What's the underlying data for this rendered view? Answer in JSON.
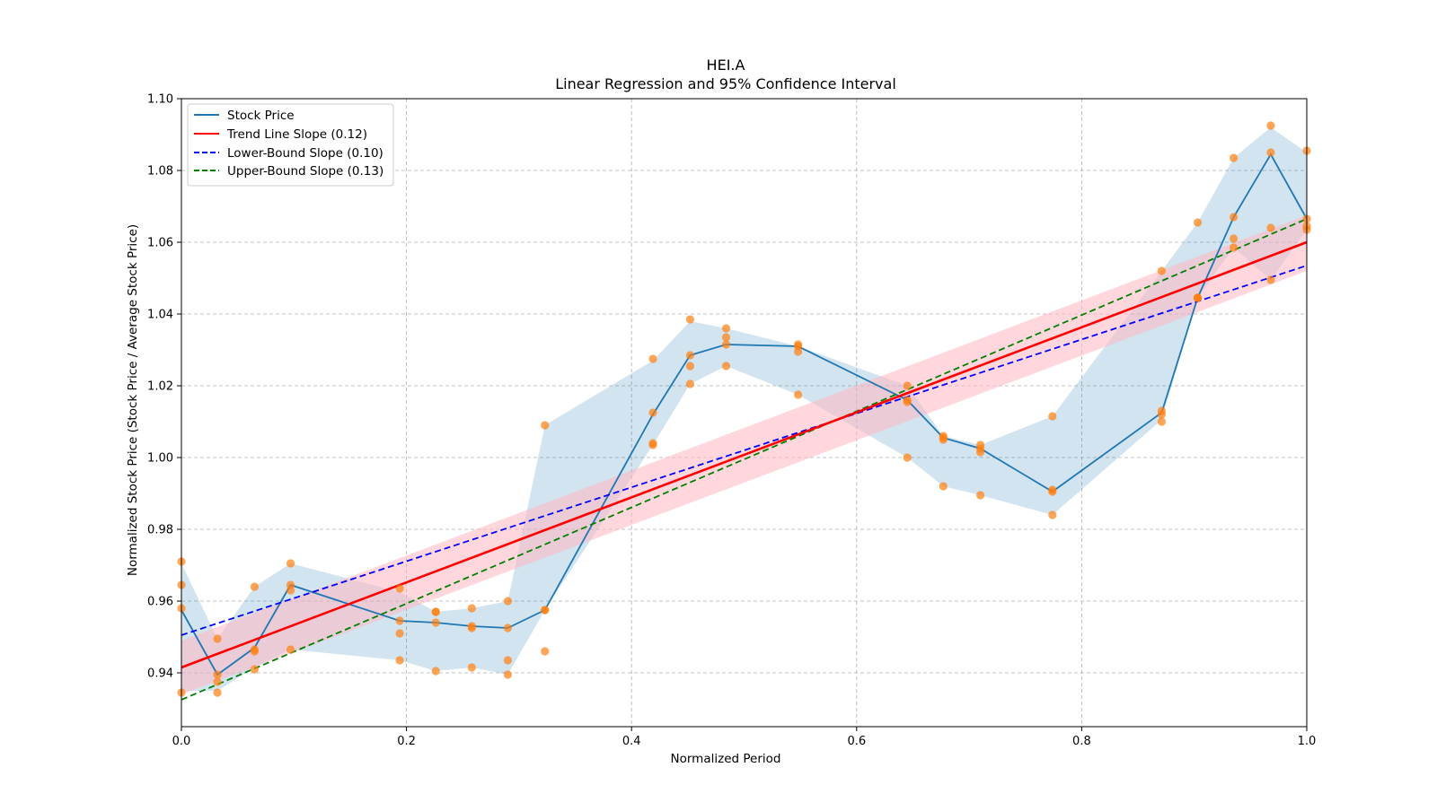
{
  "colors": {
    "price_line": "#1f77b4",
    "price_band": "#1f77b4",
    "scatter": "#ff7f0e",
    "trend": "#ff0000",
    "trend_band": "#ffb6c1",
    "lower": "#0000ff",
    "upper": "#008000",
    "grid": "#b0b0b0"
  },
  "chart_data": {
    "type": "line",
    "title": "HEI.A",
    "subtitle": "Linear Regression and 95% Confidence Interval",
    "xlabel": "Normalized Period",
    "ylabel": "Normalized Stock Price (Stock Price / Average Stock Price)",
    "xlim": [
      0,
      1
    ],
    "ylim": [
      0.925,
      1.1
    ],
    "x_ticks": [
      "0.0",
      "0.2",
      "0.4",
      "0.6",
      "0.8",
      "1.0"
    ],
    "x_tick_values": [
      0,
      0.2,
      0.4,
      0.6,
      0.8,
      1.0
    ],
    "y_ticks": [
      "0.94",
      "0.96",
      "0.98",
      "1.00",
      "1.02",
      "1.04",
      "1.06",
      "1.08",
      "1.10"
    ],
    "y_tick_values": [
      0.94,
      0.96,
      0.98,
      1.0,
      1.02,
      1.04,
      1.06,
      1.08,
      1.1
    ],
    "grid": true,
    "legend_position": "top-left",
    "legend": [
      {
        "label": "Stock Price",
        "style": "solid",
        "color": "#1f77b4"
      },
      {
        "label": "Trend Line Slope (0.12)",
        "style": "solid",
        "color": "#ff0000"
      },
      {
        "label": "Lower-Bound Slope (0.10)",
        "style": "dashed",
        "color": "#0000ff"
      },
      {
        "label": "Upper-Bound Slope (0.13)",
        "style": "dashed",
        "color": "#008000"
      }
    ],
    "stock_price": {
      "x": [
        0.0,
        0.032,
        0.065,
        0.097,
        0.194,
        0.226,
        0.258,
        0.29,
        0.323,
        0.419,
        0.452,
        0.484,
        0.548,
        0.645,
        0.677,
        0.71,
        0.774,
        0.871,
        0.903,
        0.935,
        0.968,
        1.0
      ],
      "y": [
        0.9575,
        0.9395,
        0.947,
        0.9645,
        0.9545,
        0.954,
        0.953,
        0.9525,
        0.9575,
        1.012,
        1.0285,
        1.0315,
        1.031,
        1.016,
        1.0055,
        1.0025,
        0.9905,
        1.0125,
        1.0445,
        1.067,
        1.0845,
        1.0665
      ]
    },
    "price_band": {
      "x": [
        0.0,
        0.032,
        0.065,
        0.097,
        0.194,
        0.226,
        0.258,
        0.29,
        0.323,
        0.419,
        0.452,
        0.484,
        0.548,
        0.645,
        0.677,
        0.71,
        0.774,
        0.871,
        0.903,
        0.935,
        0.968,
        1.0
      ],
      "upper": [
        0.9705,
        0.9495,
        0.964,
        0.9705,
        0.9625,
        0.957,
        0.958,
        0.96,
        1.009,
        1.027,
        1.038,
        1.036,
        1.031,
        1.02,
        1.006,
        1.0035,
        1.0115,
        1.052,
        1.0655,
        1.0835,
        1.092,
        1.085
      ],
      "lower": [
        0.935,
        0.935,
        0.9415,
        0.9465,
        0.9435,
        0.9405,
        0.9415,
        0.9395,
        0.9575,
        1.0035,
        1.0205,
        1.0255,
        1.0175,
        1.0,
        0.992,
        0.9895,
        0.984,
        1.0105,
        1.0445,
        1.0585,
        1.0495,
        1.0635
      ]
    },
    "scatter_points": {
      "x": [
        0.0,
        0.0,
        0.0,
        0.0,
        0.032,
        0.032,
        0.032,
        0.032,
        0.065,
        0.065,
        0.065,
        0.065,
        0.097,
        0.097,
        0.097,
        0.097,
        0.194,
        0.194,
        0.194,
        0.194,
        0.226,
        0.226,
        0.226,
        0.226,
        0.258,
        0.258,
        0.258,
        0.258,
        0.29,
        0.29,
        0.29,
        0.29,
        0.323,
        0.323,
        0.323,
        0.323,
        0.419,
        0.419,
        0.419,
        0.419,
        0.452,
        0.452,
        0.452,
        0.452,
        0.484,
        0.484,
        0.484,
        0.484,
        0.548,
        0.548,
        0.548,
        0.548,
        0.645,
        0.645,
        0.645,
        0.645,
        0.677,
        0.677,
        0.677,
        0.677,
        0.71,
        0.71,
        0.71,
        0.71,
        0.774,
        0.774,
        0.774,
        0.774,
        0.871,
        0.871,
        0.871,
        0.871,
        0.903,
        0.903,
        0.903,
        0.903,
        0.935,
        0.935,
        0.935,
        0.935,
        0.968,
        0.968,
        0.968,
        0.968,
        1.0,
        1.0,
        1.0,
        1.0
      ],
      "y": [
        0.971,
        0.9645,
        0.958,
        0.9345,
        0.9495,
        0.9395,
        0.9375,
        0.9345,
        0.964,
        0.9465,
        0.946,
        0.941,
        0.9705,
        0.9645,
        0.963,
        0.9465,
        0.9635,
        0.9545,
        0.951,
        0.9435,
        0.957,
        0.957,
        0.954,
        0.9405,
        0.958,
        0.953,
        0.9525,
        0.9415,
        0.96,
        0.9525,
        0.9435,
        0.9395,
        1.009,
        0.9575,
        0.9575,
        0.946,
        1.0275,
        1.0125,
        1.004,
        1.0035,
        1.0385,
        1.0285,
        1.0255,
        1.0205,
        1.036,
        1.0335,
        1.0315,
        1.0255,
        1.031,
        1.0315,
        1.0295,
        1.0175,
        1.02,
        1.016,
        1.0155,
        1.0,
        1.006,
        1.0055,
        1.005,
        0.992,
        1.0035,
        1.0025,
        1.0015,
        0.9895,
        1.0115,
        0.991,
        0.9905,
        0.984,
        1.052,
        1.013,
        1.012,
        1.01,
        1.0655,
        1.0445,
        1.0445,
        1.0445,
        1.0835,
        1.067,
        1.061,
        1.0585,
        1.0925,
        1.085,
        1.064,
        1.0495,
        1.0855,
        1.0665,
        1.0645,
        1.0635
      ]
    },
    "trend_line": {
      "x": [
        0,
        1
      ],
      "y": [
        0.9415,
        1.06
      ]
    },
    "trend_band": {
      "x": [
        0,
        1
      ],
      "upper": [
        0.949,
        1.0675
      ],
      "lower": [
        0.934,
        1.052
      ]
    },
    "lower_bound_line": {
      "x": [
        0,
        1
      ],
      "y": [
        0.9505,
        1.0535
      ]
    },
    "upper_bound_line": {
      "x": [
        0,
        1
      ],
      "y": [
        0.9325,
        1.0665
      ]
    }
  }
}
